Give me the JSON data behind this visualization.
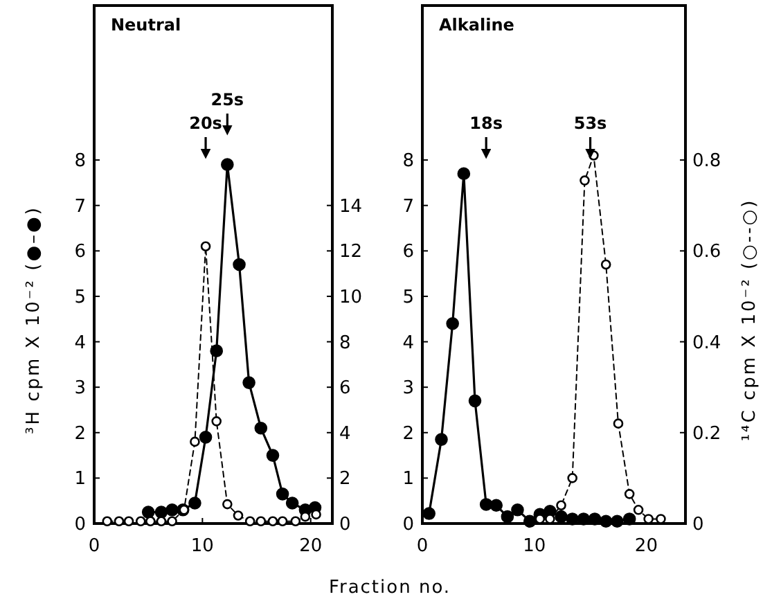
{
  "chart_data": [
    {
      "type": "line",
      "title": "Neutral",
      "xlabel": "Fraction no.",
      "ylabel": "³H cpm X 10⁻² (●–●)",
      "xlim": [
        0,
        22
      ],
      "xticks": [
        0,
        10,
        20
      ],
      "ylim": [
        0,
        11.4
      ],
      "yticks": [
        0,
        1,
        2,
        3,
        4,
        5,
        6,
        7,
        8
      ],
      "y2lim": [
        0,
        22.8
      ],
      "y2ticks": [
        0,
        2,
        4,
        6,
        8,
        10,
        12,
        14
      ],
      "marker": "circle",
      "grid": false,
      "ref_lines": [
        {
          "axis": "x",
          "value": 10.3,
          "label": "20s"
        },
        {
          "axis": "x",
          "value": 12.3,
          "label": "25s"
        }
      ],
      "series": [
        {
          "color": "#000000",
          "line_style": "solid",
          "x": [
            5.0,
            6.2,
            7.2,
            8.2,
            9.3,
            10.3,
            11.3,
            12.3,
            13.4,
            14.3,
            15.4,
            16.5,
            17.4,
            18.3,
            19.5,
            20.4
          ],
          "values": [
            0.25,
            0.25,
            0.3,
            0.3,
            0.45,
            1.9,
            3.8,
            7.9,
            5.7,
            3.1,
            2.1,
            1.5,
            0.65,
            0.45,
            0.3,
            0.35
          ]
        },
        {
          "color": "#000000",
          "line_style": "dashed",
          "axis": "y2",
          "x": [
            1.2,
            2.3,
            3.2,
            4.3,
            5.2,
            6.2,
            7.2,
            8.3,
            9.3,
            10.3,
            11.3,
            12.3,
            13.3,
            14.4,
            15.4,
            16.5,
            17.4,
            18.6,
            19.5,
            20.5
          ],
          "values": [
            0.1,
            0.1,
            0.1,
            0.1,
            0.1,
            0.1,
            0.1,
            0.6,
            3.6,
            12.2,
            4.5,
            0.85,
            0.35,
            0.1,
            0.1,
            0.1,
            0.1,
            0.1,
            0.3,
            0.4
          ]
        }
      ]
    },
    {
      "type": "line",
      "title": "Alkaline",
      "y2label": "¹⁴C cpm X 10⁻² (○--○)",
      "xlim": [
        0,
        23.5
      ],
      "xticks": [
        0,
        10,
        20
      ],
      "ylim": [
        0,
        11.4
      ],
      "yticks": [
        0,
        1,
        2,
        3,
        4,
        5,
        6,
        7,
        8
      ],
      "y2lim": [
        0,
        1.14
      ],
      "y2ticks": [
        0,
        0.2,
        0.4,
        0.6,
        0.8
      ],
      "marker": "circle",
      "grid": false,
      "ref_lines": [
        {
          "axis": "x",
          "value": 5.7,
          "label": "18s"
        },
        {
          "axis": "x",
          "value": 15.0,
          "label": "53s"
        }
      ],
      "series": [
        {
          "color": "#000000",
          "line_style": "solid",
          "x": [
            0.6,
            1.7,
            2.7,
            3.7,
            4.7,
            5.7,
            6.6,
            7.6,
            8.5,
            9.6,
            10.5,
            11.4,
            12.4,
            13.4,
            14.4,
            15.4,
            16.4,
            17.4,
            18.5
          ],
          "values": [
            0.22,
            1.85,
            4.4,
            7.7,
            2.7,
            0.42,
            0.4,
            0.15,
            0.3,
            0.05,
            0.2,
            0.27,
            0.15,
            0.1,
            0.1,
            0.1,
            0.05,
            0.05,
            0.1
          ]
        },
        {
          "color": "#000000",
          "line_style": "dashed",
          "axis": "y2",
          "x": [
            10.5,
            11.4,
            12.4,
            13.4,
            14.5,
            15.3,
            16.4,
            17.5,
            18.5,
            19.3,
            20.2,
            21.3
          ],
          "values": [
            0.01,
            0.01,
            0.04,
            0.1,
            0.755,
            0.81,
            0.57,
            0.22,
            0.065,
            0.03,
            0.01,
            0.01
          ]
        }
      ]
    }
  ]
}
